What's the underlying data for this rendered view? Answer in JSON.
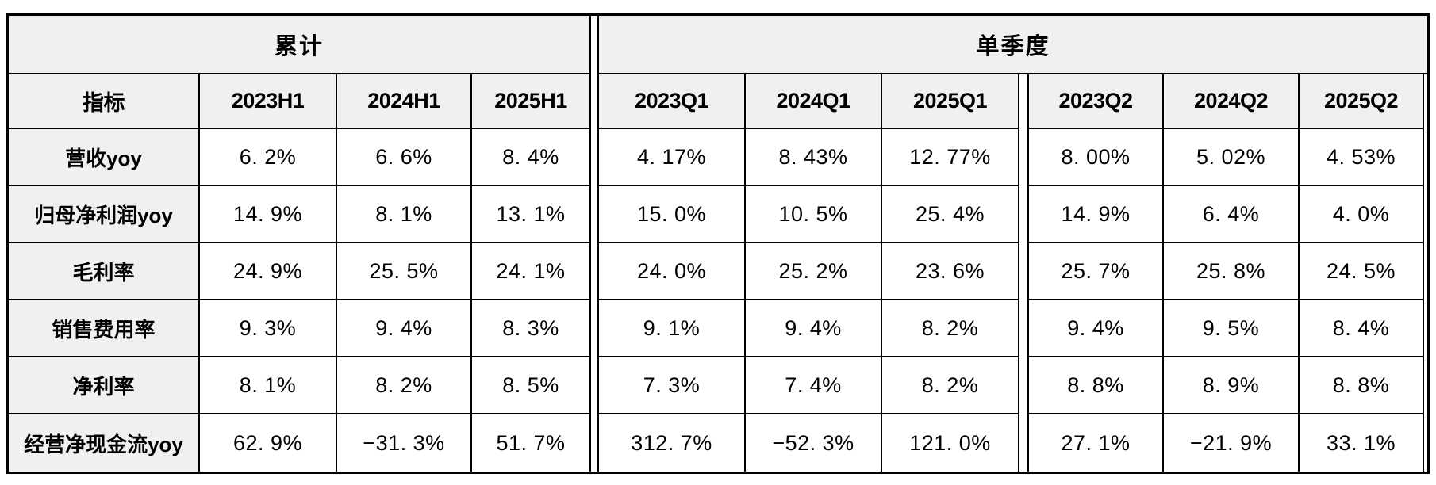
{
  "chart_data": {
    "type": "table",
    "band_headers": [
      {
        "label": "累计",
        "span_columns": [
          "指标",
          "2023H1",
          "2024H1",
          "2025H1"
        ]
      },
      {
        "label": "单季度",
        "span_columns": [
          "2023Q1",
          "2024Q1",
          "2025Q1",
          "2023Q2",
          "2024Q2",
          "2025Q2"
        ]
      }
    ],
    "columns": [
      "指标",
      "2023H1",
      "2024H1",
      "2025H1",
      "2023Q1",
      "2024Q1",
      "2025Q1",
      "2023Q2",
      "2024Q2",
      "2025Q2"
    ],
    "rows": [
      {
        "label": "营收yoy",
        "values": [
          "6.2%",
          "6.6%",
          "8.4%",
          "4.17%",
          "8.43%",
          "12.77%",
          "8.00%",
          "5.02%",
          "4.53%"
        ]
      },
      {
        "label": "归母净利润yoy",
        "values": [
          "14.9%",
          "8.1%",
          "13.1%",
          "15.0%",
          "10.5%",
          "25.4%",
          "14.9%",
          "6.4%",
          "4.0%"
        ]
      },
      {
        "label": "毛利率",
        "values": [
          "24.9%",
          "25.5%",
          "24.1%",
          "24.0%",
          "25.2%",
          "23.6%",
          "25.7%",
          "25.8%",
          "24.5%"
        ]
      },
      {
        "label": "销售费用率",
        "values": [
          "9.3%",
          "9.4%",
          "8.3%",
          "9.1%",
          "9.4%",
          "8.2%",
          "9.4%",
          "9.5%",
          "8.4%"
        ]
      },
      {
        "label": "净利率",
        "values": [
          "8.1%",
          "8.2%",
          "8.5%",
          "7.3%",
          "7.4%",
          "8.2%",
          "8.8%",
          "8.9%",
          "8.8%"
        ]
      },
      {
        "label": "经营净现金流yoy",
        "values": [
          "62.9%",
          "-31.3%",
          "51.7%",
          "312.7%",
          "-52.3%",
          "121.0%",
          "27.1%",
          "-21.9%",
          "33.1%"
        ]
      }
    ],
    "layout_hints": {
      "grid": "on",
      "header_fill": "#f0f0f0",
      "cell_fill": "#ffffff",
      "grid_line_color": "#000000",
      "group_separator": "double-line white channel"
    }
  }
}
